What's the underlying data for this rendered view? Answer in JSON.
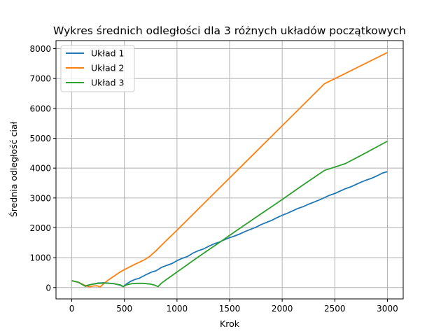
{
  "chart_data": {
    "type": "line",
    "title": "Wykres średnich odległości dla 3 różnych układów początkowych",
    "xlabel": "Krok",
    "ylabel": "Średnia odległość ciał",
    "xlim": [
      -150,
      3150
    ],
    "ylim": [
      -380,
      8270
    ],
    "xticks": [
      0,
      500,
      1000,
      1500,
      2000,
      2500,
      3000
    ],
    "yticks": [
      0,
      1000,
      2000,
      3000,
      4000,
      5000,
      6000,
      7000,
      8000
    ],
    "xtick_labels": [
      "0",
      "500",
      "1000",
      "1500",
      "2000",
      "2500",
      "3000"
    ],
    "ytick_labels": [
      "0",
      "1000",
      "2000",
      "3000",
      "4000",
      "5000",
      "6000",
      "7000",
      "8000"
    ],
    "grid": true,
    "legend_position": "top-left",
    "series": [
      {
        "name": "Układ 1",
        "color": "#1f77b4",
        "points": [
          [
            0,
            230
          ],
          [
            60,
            180
          ],
          [
            130,
            60
          ],
          [
            180,
            100
          ],
          [
            250,
            150
          ],
          [
            320,
            160
          ],
          [
            400,
            130
          ],
          [
            460,
            80
          ],
          [
            490,
            30
          ],
          [
            520,
            120
          ],
          [
            560,
            210
          ],
          [
            600,
            270
          ],
          [
            640,
            310
          ],
          [
            700,
            420
          ],
          [
            760,
            520
          ],
          [
            800,
            560
          ],
          [
            850,
            670
          ],
          [
            900,
            740
          ],
          [
            950,
            800
          ],
          [
            1000,
            900
          ],
          [
            1050,
            980
          ],
          [
            1100,
            1040
          ],
          [
            1150,
            1150
          ],
          [
            1200,
            1230
          ],
          [
            1250,
            1290
          ],
          [
            1300,
            1380
          ],
          [
            1350,
            1460
          ],
          [
            1400,
            1520
          ],
          [
            1450,
            1600
          ],
          [
            1500,
            1670
          ],
          [
            1550,
            1730
          ],
          [
            1600,
            1800
          ],
          [
            1650,
            1880
          ],
          [
            1700,
            1950
          ],
          [
            1750,
            2020
          ],
          [
            1800,
            2110
          ],
          [
            1850,
            2180
          ],
          [
            1900,
            2250
          ],
          [
            1950,
            2340
          ],
          [
            2000,
            2420
          ],
          [
            2050,
            2490
          ],
          [
            2100,
            2570
          ],
          [
            2150,
            2650
          ],
          [
            2200,
            2710
          ],
          [
            2250,
            2790
          ],
          [
            2300,
            2860
          ],
          [
            2350,
            2930
          ],
          [
            2400,
            3010
          ],
          [
            2450,
            3090
          ],
          [
            2500,
            3150
          ],
          [
            2550,
            3230
          ],
          [
            2600,
            3310
          ],
          [
            2650,
            3370
          ],
          [
            2700,
            3450
          ],
          [
            2750,
            3530
          ],
          [
            2800,
            3600
          ],
          [
            2850,
            3660
          ],
          [
            2900,
            3740
          ],
          [
            2950,
            3830
          ],
          [
            3000,
            3880
          ]
        ]
      },
      {
        "name": "Układ 2",
        "color": "#ff7f0e",
        "points": [
          [
            0,
            230
          ],
          [
            60,
            180
          ],
          [
            120,
            80
          ],
          [
            170,
            20
          ],
          [
            200,
            50
          ],
          [
            240,
            60
          ],
          [
            270,
            20
          ],
          [
            300,
            120
          ],
          [
            350,
            260
          ],
          [
            400,
            380
          ],
          [
            450,
            500
          ],
          [
            500,
            600
          ],
          [
            550,
            690
          ],
          [
            600,
            780
          ],
          [
            650,
            860
          ],
          [
            700,
            950
          ],
          [
            740,
            1040
          ],
          [
            800,
            1230
          ],
          [
            900,
            1580
          ],
          [
            1000,
            1920
          ],
          [
            1200,
            2620
          ],
          [
            1400,
            3320
          ],
          [
            1600,
            4020
          ],
          [
            1800,
            4720
          ],
          [
            2000,
            5420
          ],
          [
            2200,
            6120
          ],
          [
            2400,
            6820
          ],
          [
            2600,
            7170
          ],
          [
            2800,
            7520
          ],
          [
            3000,
            7870
          ]
        ]
      },
      {
        "name": "Układ 3",
        "color": "#2ca02c",
        "points": [
          [
            0,
            230
          ],
          [
            60,
            180
          ],
          [
            130,
            40
          ],
          [
            180,
            100
          ],
          [
            250,
            140
          ],
          [
            320,
            150
          ],
          [
            400,
            130
          ],
          [
            460,
            90
          ],
          [
            490,
            30
          ],
          [
            520,
            90
          ],
          [
            570,
            130
          ],
          [
            620,
            140
          ],
          [
            680,
            140
          ],
          [
            740,
            120
          ],
          [
            790,
            80
          ],
          [
            820,
            30
          ],
          [
            850,
            140
          ],
          [
            900,
            270
          ],
          [
            1000,
            520
          ],
          [
            1200,
            1020
          ],
          [
            1400,
            1500
          ],
          [
            1600,
            1990
          ],
          [
            1800,
            2470
          ],
          [
            2000,
            2950
          ],
          [
            2200,
            3440
          ],
          [
            2400,
            3920
          ],
          [
            2600,
            4150
          ],
          [
            2800,
            4520
          ],
          [
            3000,
            4900
          ]
        ]
      }
    ]
  }
}
